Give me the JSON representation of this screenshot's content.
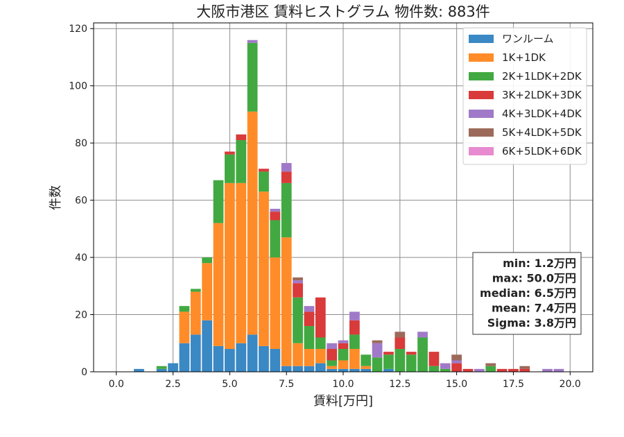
{
  "chart_data": {
    "type": "bar",
    "stacked": true,
    "title": "大阪市港区 賃料ヒストグラム 物件数: 883件",
    "xlabel": "賃料[万円]",
    "ylabel": "件数",
    "xlim": [
      -1.0,
      21.0
    ],
    "ylim": [
      0,
      122
    ],
    "x_ticks": [
      0.0,
      2.5,
      5.0,
      7.5,
      10.0,
      12.5,
      15.0,
      17.5,
      20.0
    ],
    "x_tick_labels": [
      "0.0",
      "2.5",
      "5.0",
      "7.5",
      "10.0",
      "12.5",
      "15.0",
      "17.5",
      "20.0"
    ],
    "y_ticks": [
      0,
      20,
      40,
      60,
      80,
      100,
      120
    ],
    "y_tick_labels": [
      "0",
      "20",
      "40",
      "60",
      "80",
      "100",
      "120"
    ],
    "grid": true,
    "legend_position": "top-right",
    "bin_width": 0.5,
    "bin_starts": [
      0.75,
      1.75,
      2.25,
      2.75,
      3.25,
      3.75,
      4.25,
      4.75,
      5.25,
      5.75,
      6.25,
      6.75,
      7.25,
      7.75,
      8.25,
      8.75,
      9.25,
      9.75,
      10.25,
      10.75,
      11.25,
      11.75,
      12.25,
      12.75,
      13.25,
      13.75,
      14.25,
      14.75,
      15.25,
      15.75,
      16.25,
      16.75,
      17.25,
      17.75,
      18.75,
      19.25
    ],
    "series": [
      {
        "name": "ワンルーム",
        "color": "#3a88c4",
        "values": [
          1,
          1,
          3,
          10,
          13,
          18,
          9,
          8,
          10,
          13,
          9,
          8,
          2,
          2,
          2,
          3,
          1,
          1,
          1,
          1,
          0,
          1,
          0,
          0,
          0,
          0,
          0,
          0,
          0,
          0,
          0,
          0,
          0,
          0,
          0,
          0
        ]
      },
      {
        "name": "1K+1DK",
        "color": "#ff8c28",
        "values": [
          0,
          0,
          0,
          11,
          15,
          20,
          43,
          58,
          56,
          78,
          54,
          32,
          45,
          8,
          6,
          5,
          1,
          3,
          7,
          1,
          0,
          0,
          0,
          0,
          0,
          0,
          0,
          0,
          0,
          0,
          0,
          0,
          0,
          0,
          0,
          0
        ]
      },
      {
        "name": "2K+1LDK+2DK",
        "color": "#42a942",
        "values": [
          0,
          1,
          0,
          2,
          1,
          2,
          15,
          10,
          15,
          24,
          7,
          13,
          19,
          16,
          8,
          4,
          2,
          4,
          5,
          4,
          5,
          5,
          8,
          6,
          12,
          2,
          1,
          0,
          0,
          0,
          2,
          0,
          0,
          0,
          0,
          0
        ]
      },
      {
        "name": "3K+2LDK+3DK",
        "color": "#d93a3a",
        "values": [
          0,
          0,
          0,
          0,
          0,
          0,
          0,
          1,
          2,
          0,
          1,
          3,
          4,
          5,
          5,
          14,
          4,
          2,
          5,
          0,
          0,
          1,
          4,
          1,
          0,
          5,
          0,
          3,
          1,
          0,
          0,
          1,
          1,
          1,
          0,
          0
        ]
      },
      {
        "name": "4K+3LDK+4DK",
        "color": "#a07ac8",
        "values": [
          0,
          0,
          0,
          0,
          0,
          0,
          0,
          0,
          0,
          1,
          0,
          1,
          3,
          1,
          2,
          0,
          2,
          1,
          3,
          0,
          5,
          0,
          0,
          0,
          2,
          0,
          2,
          1,
          0,
          1,
          0,
          0,
          0,
          0,
          1,
          1
        ]
      },
      {
        "name": "5K+4LDK+5DK",
        "color": "#9c6a5a",
        "values": [
          0,
          0,
          0,
          0,
          0,
          0,
          0,
          0,
          0,
          0,
          0,
          0,
          0,
          1,
          0,
          0,
          0,
          0,
          0,
          0,
          1,
          0,
          2,
          0,
          0,
          0,
          0,
          2,
          0,
          0,
          1,
          0,
          0,
          1,
          0,
          0
        ]
      },
      {
        "name": "6K+5LDK+6DK",
        "color": "#e88ad0",
        "values": [
          0,
          0,
          0,
          0,
          0,
          0,
          0,
          0,
          0,
          0,
          0,
          0,
          0,
          0,
          0,
          0,
          0,
          0,
          0,
          0,
          0,
          0,
          0,
          0,
          0,
          0,
          0,
          0,
          0,
          0,
          0,
          0,
          0,
          0,
          0,
          0
        ]
      }
    ],
    "stats": {
      "min": "min: 1.2万円",
      "max": "max: 50.0万円",
      "median": "median: 6.5万円",
      "mean": "mean: 7.4万円",
      "sigma": "Sigma: 3.8万円"
    }
  }
}
